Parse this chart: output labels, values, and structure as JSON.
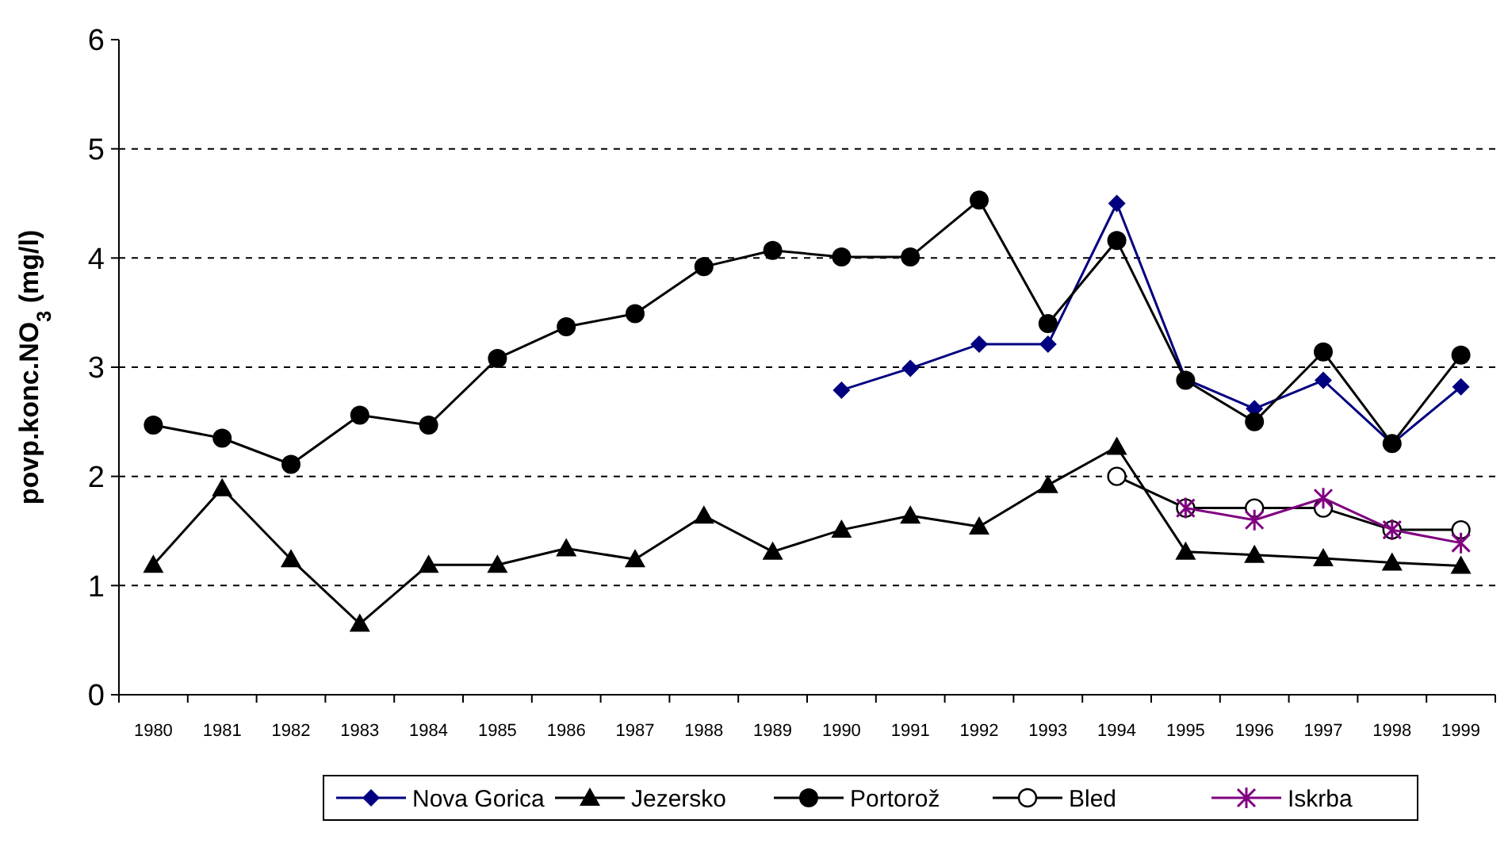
{
  "chart_data": {
    "type": "line",
    "ylabel": "povp.konc.NO$_{3}$ (mg/l)",
    "categories": [
      "1980",
      "1981",
      "1982",
      "1983",
      "1984",
      "1985",
      "1986",
      "1987",
      "1988",
      "1989",
      "1990",
      "1991",
      "1992",
      "1993",
      "1994",
      "1995",
      "1996",
      "1997",
      "1998",
      "1999"
    ],
    "ylim": [
      0,
      6
    ],
    "yticks": [
      0,
      1,
      2,
      3,
      4,
      5,
      6
    ],
    "grid": "y",
    "legend": "bottom",
    "series": [
      {
        "name": "Nova Gorica",
        "color": "#000080",
        "marker": "diamond",
        "values": [
          null,
          null,
          null,
          null,
          null,
          null,
          null,
          null,
          null,
          null,
          2.79,
          2.99,
          3.21,
          3.21,
          4.5,
          2.89,
          2.62,
          2.88,
          2.3,
          2.82
        ]
      },
      {
        "name": "Jezersko",
        "color": "#000000",
        "marker": "triangle",
        "values": [
          1.19,
          1.89,
          1.24,
          0.65,
          1.19,
          1.19,
          1.34,
          1.24,
          1.64,
          1.31,
          1.51,
          1.64,
          1.54,
          1.92,
          2.27,
          1.31,
          1.28,
          1.25,
          1.21,
          1.18
        ]
      },
      {
        "name": "Portorož",
        "color": "#000000",
        "marker": "circle",
        "values": [
          2.47,
          2.35,
          2.11,
          2.56,
          2.47,
          3.08,
          3.37,
          3.49,
          3.92,
          4.07,
          4.01,
          4.01,
          4.53,
          3.4,
          4.16,
          2.88,
          2.5,
          3.14,
          2.3,
          3.11
        ]
      },
      {
        "name": "Bled",
        "color": "#000000",
        "marker": "circle-open",
        "values": [
          null,
          null,
          null,
          null,
          null,
          null,
          null,
          null,
          null,
          null,
          null,
          null,
          null,
          null,
          2.0,
          1.71,
          1.71,
          1.71,
          1.51,
          1.51
        ]
      },
      {
        "name": "Iskrba",
        "color": "#800080",
        "marker": "cross",
        "values": [
          null,
          null,
          null,
          null,
          null,
          null,
          null,
          null,
          null,
          null,
          null,
          null,
          null,
          null,
          null,
          1.71,
          1.6,
          1.8,
          1.51,
          1.39
        ]
      }
    ]
  }
}
